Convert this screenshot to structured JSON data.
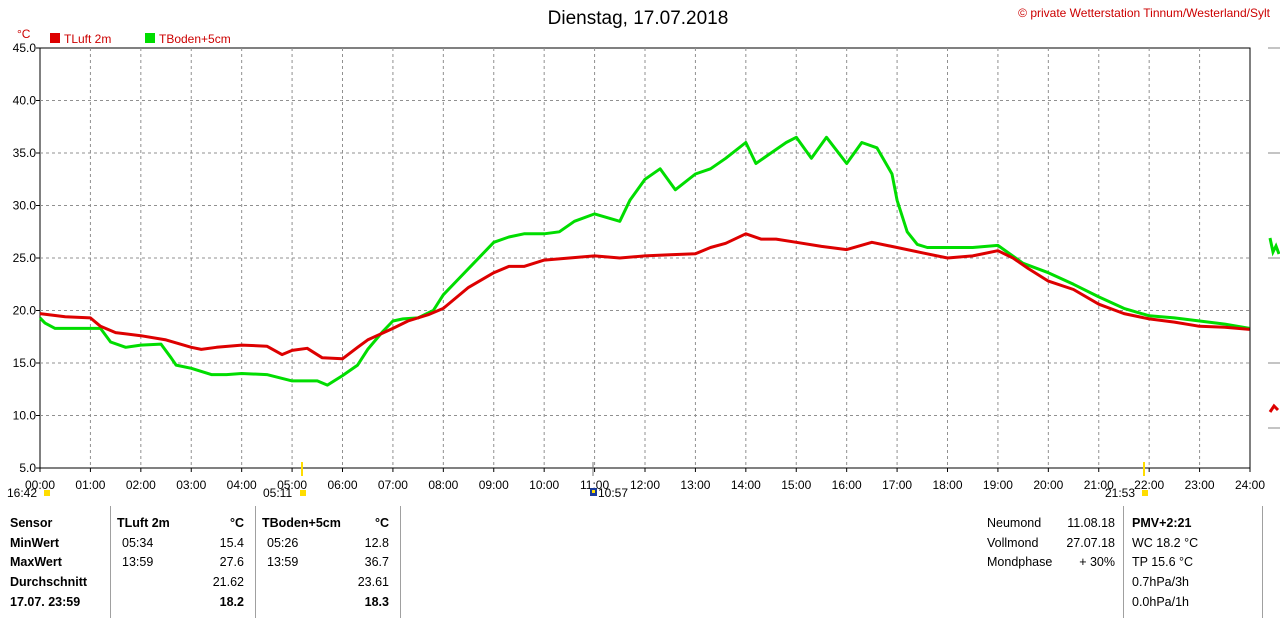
{
  "header": {
    "title": "Dienstag, 17.07.2018",
    "copyright": "© private Wetterstation Tinnum/Westerland/Sylt",
    "unit": "°C"
  },
  "legend": [
    {
      "name": "TLuft 2m",
      "color": "#dd0000"
    },
    {
      "name": "TBoden+5cm",
      "color": "#00dd00"
    }
  ],
  "markers": [
    {
      "label": "16:42",
      "kind": "yellow"
    },
    {
      "label": "05:11",
      "kind": "sunrise"
    },
    {
      "label": "10:57",
      "kind": "moon"
    },
    {
      "label": "21:53",
      "kind": "sunset"
    }
  ],
  "chart_data": {
    "type": "line",
    "ylim": [
      5,
      45
    ],
    "yticks": [
      "5.0",
      "10.0",
      "15.0",
      "20.0",
      "25.0",
      "30.0",
      "35.0",
      "40.0",
      "45.0"
    ],
    "xlim": [
      0,
      24
    ],
    "xticks": [
      "00:00",
      "01:00",
      "02:00",
      "03:00",
      "04:00",
      "05:00",
      "06:00",
      "07:00",
      "08:00",
      "09:00",
      "10:00",
      "11:00",
      "12:00",
      "13:00",
      "14:00",
      "15:00",
      "16:00",
      "17:00",
      "18:00",
      "19:00",
      "20:00",
      "21:00",
      "22:00",
      "23:00",
      "24:00"
    ],
    "grid": true,
    "series": [
      {
        "name": "TLuft 2m",
        "color": "#dd0000",
        "x": [
          0,
          0.5,
          1,
          1.2,
          1.5,
          2,
          2.5,
          3,
          3.2,
          3.5,
          4,
          4.5,
          4.8,
          5,
          5.3,
          5.6,
          6,
          6.3,
          6.5,
          7,
          7.3,
          7.7,
          8,
          8.5,
          9,
          9.3,
          9.6,
          10,
          10.5,
          11,
          11.5,
          12,
          12.5,
          13,
          13.3,
          13.6,
          14,
          14.3,
          14.6,
          15,
          15.5,
          16,
          16.5,
          17,
          17.5,
          18,
          18.5,
          19,
          19.3,
          19.6,
          20,
          20.5,
          21,
          21.5,
          22,
          22.5,
          23,
          23.5,
          23.99
        ],
        "values": [
          19.7,
          19.4,
          19.3,
          18.5,
          17.9,
          17.6,
          17.2,
          16.5,
          16.3,
          16.5,
          16.7,
          16.6,
          15.8,
          16.2,
          16.4,
          15.5,
          15.4,
          16.5,
          17.2,
          18.3,
          19.0,
          19.6,
          20.2,
          22.2,
          23.6,
          24.2,
          24.2,
          24.8,
          25.0,
          25.2,
          25.0,
          25.2,
          25.3,
          25.4,
          26.0,
          26.4,
          27.3,
          26.8,
          26.8,
          26.5,
          26.1,
          25.8,
          26.5,
          26.0,
          25.5,
          25.0,
          25.2,
          25.7,
          25.0,
          24.0,
          22.8,
          22.0,
          20.6,
          19.7,
          19.2,
          18.9,
          18.5,
          18.4,
          18.2
        ]
      },
      {
        "name": "TBoden+5cm",
        "color": "#00dd00",
        "x": [
          0,
          0.1,
          0.3,
          1.2,
          1.4,
          1.7,
          2,
          2.4,
          2.6,
          2.7,
          3,
          3.4,
          3.7,
          4,
          4.5,
          5,
          5.5,
          5.7,
          6,
          6.3,
          6.5,
          6.8,
          7,
          7.2,
          7.5,
          7.8,
          8,
          8.3,
          8.6,
          9,
          9.3,
          9.6,
          10,
          10.3,
          10.6,
          11,
          11.5,
          11.7,
          12,
          12.3,
          12.6,
          13,
          13.3,
          13.6,
          14,
          14.2,
          14.5,
          14.8,
          15,
          15.3,
          15.6,
          16,
          16.3,
          16.6,
          16.9,
          17.0,
          17.2,
          17.4,
          17.6,
          18,
          18.5,
          19,
          19.5,
          20,
          20.5,
          21,
          21.5,
          22,
          22.5,
          23,
          23.5,
          23.99
        ],
        "values": [
          19.3,
          18.8,
          18.3,
          18.3,
          17.0,
          16.5,
          16.7,
          16.8,
          15.5,
          14.8,
          14.5,
          13.9,
          13.9,
          14.0,
          13.9,
          13.3,
          13.3,
          12.9,
          13.8,
          14.8,
          16.3,
          18.0,
          19.0,
          19.2,
          19.3,
          20.0,
          21.5,
          23.0,
          24.5,
          26.5,
          27.0,
          27.3,
          27.3,
          27.5,
          28.5,
          29.2,
          28.5,
          30.5,
          32.5,
          33.5,
          31.5,
          33.0,
          33.5,
          34.5,
          36.0,
          34.0,
          35.0,
          36.0,
          36.5,
          34.5,
          36.5,
          34.0,
          36.0,
          35.5,
          33.0,
          30.5,
          27.5,
          26.3,
          26.0,
          26.0,
          26.0,
          26.2,
          24.5,
          23.6,
          22.5,
          21.3,
          20.2,
          19.5,
          19.3,
          19.0,
          18.7,
          18.3
        ]
      }
    ]
  },
  "panel": {
    "sensor": {
      "header": "Sensor",
      "min": "MinWert",
      "max": "MaxWert",
      "avg": "Durchschnitt",
      "current": "17.07. 23:59"
    },
    "tluft": {
      "header": "TLuft 2m",
      "unit": "°C",
      "min_time": "05:34",
      "min": "15.4",
      "max_time": "13:59",
      "max": "27.6",
      "avg": "21.62",
      "current": "18.2"
    },
    "tboden": {
      "header": "TBoden+5cm",
      "unit": "°C",
      "min_time": "05:26",
      "min": "12.8",
      "max_time": "13:59",
      "max": "36.7",
      "avg": "23.61",
      "current": "18.3"
    },
    "moon": {
      "new_label": "Neumond",
      "new_date": "11.08.18",
      "full_label": "Vollmond",
      "full_date": "27.07.18",
      "phase_label": "Mondphase",
      "phase_value": "+ 30%"
    },
    "pmv": {
      "title": "PMV+2:21",
      "wc": "WC 18.2 °C",
      "tp": "TP 15.6 °C",
      "p3h": "0.7hPa/3h",
      "p1h": "0.0hPa/1h"
    }
  }
}
